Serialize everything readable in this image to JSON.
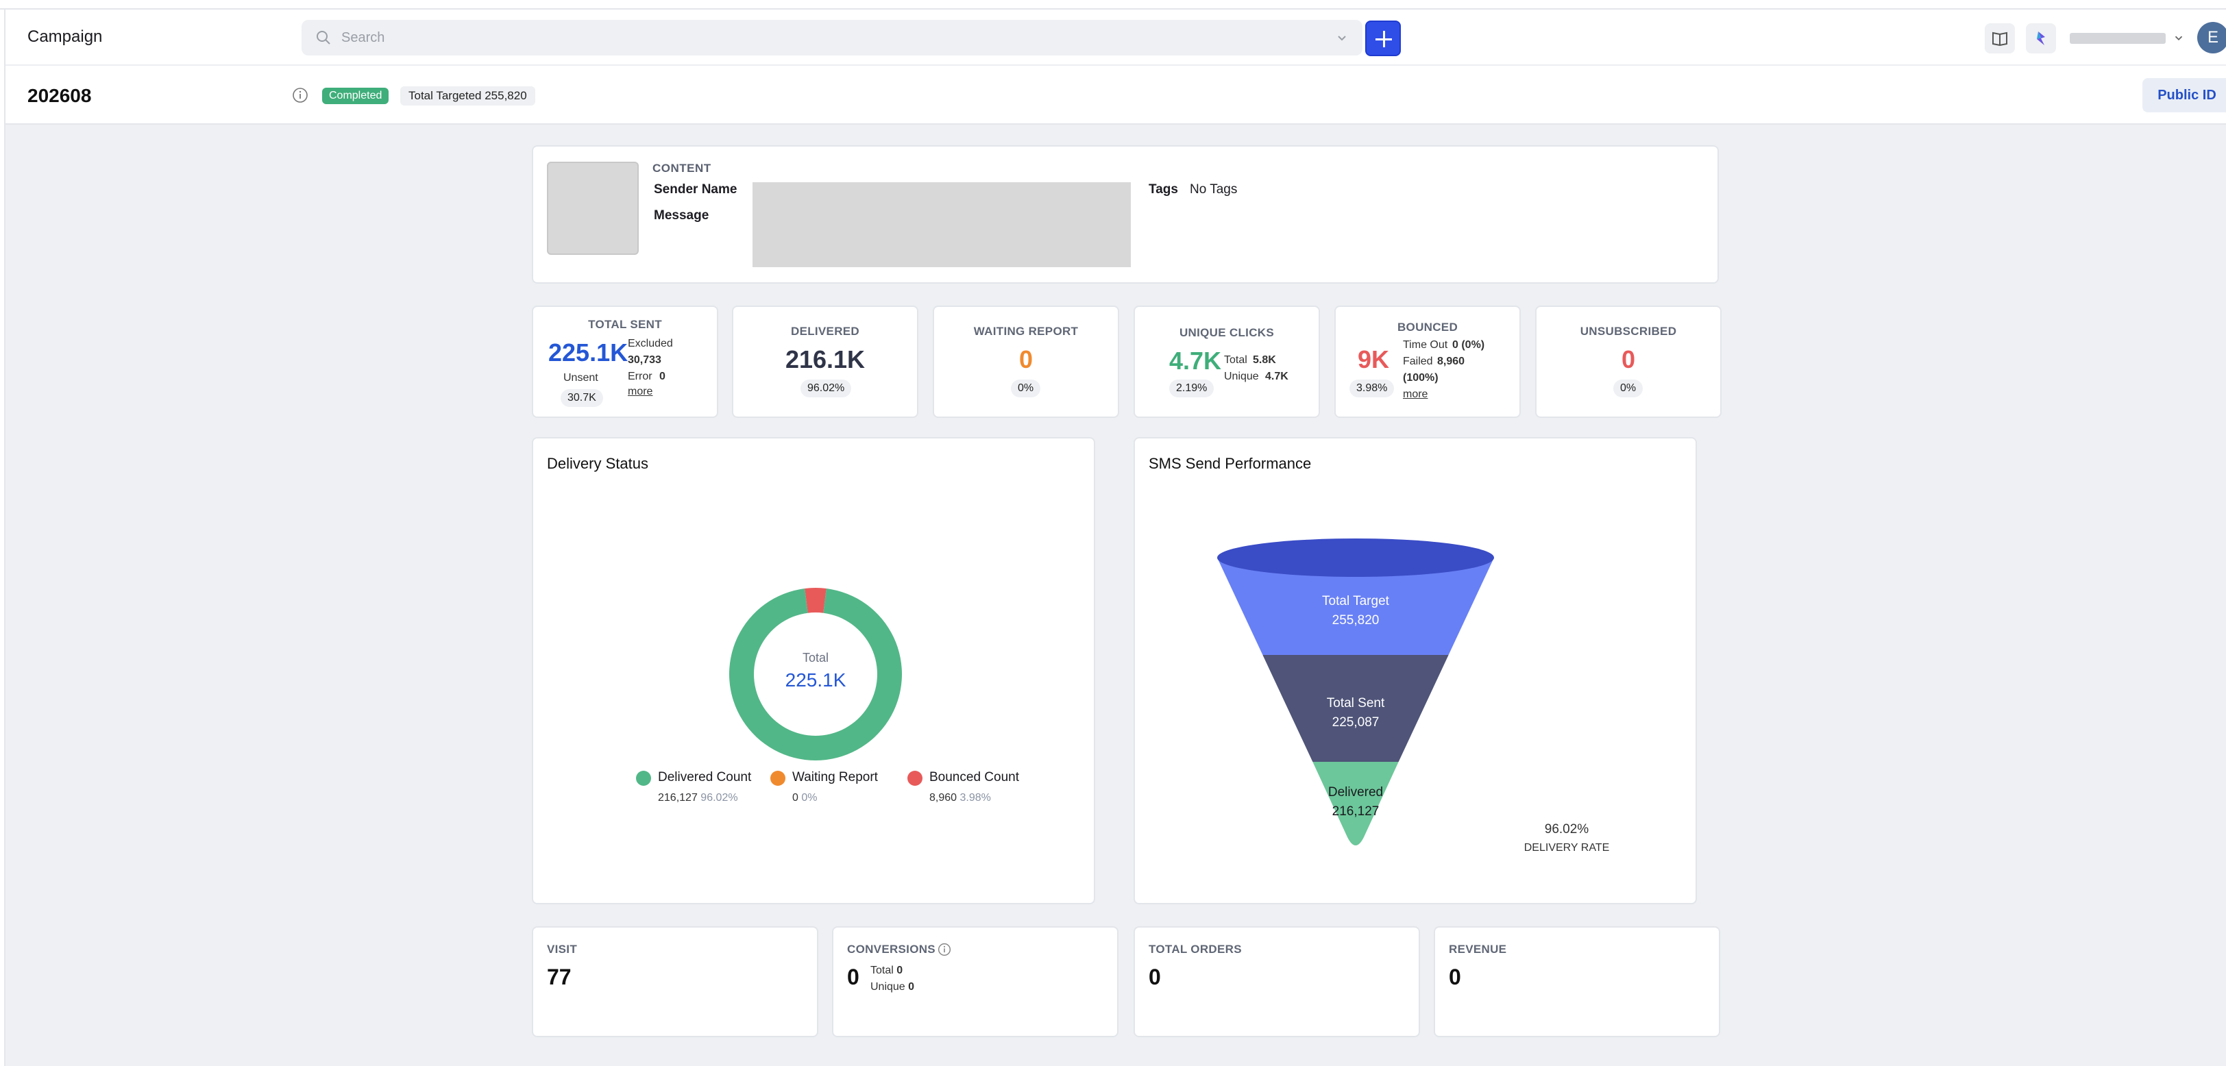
{
  "header": {
    "app_title": "Campaign",
    "search_placeholder": "Search",
    "avatar_initial": "E"
  },
  "campaign": {
    "id": "202608",
    "status": "Completed",
    "total_targeted": "Total Targeted 255,820",
    "public_id_label": "Public ID"
  },
  "content": {
    "heading": "CONTENT",
    "sender_name_label": "Sender Name",
    "message_label": "Message",
    "tags_label": "Tags",
    "tags_value": "No Tags"
  },
  "stats": {
    "total_sent": {
      "title": "TOTAL SENT",
      "value": "225.1K",
      "excluded_label": "Excluded",
      "excluded_value": "30,733",
      "unsent_label": "Unsent",
      "unsent_value": "30.7K",
      "error_label": "Error",
      "error_value": "0",
      "more": "more"
    },
    "delivered": {
      "title": "DELIVERED",
      "value": "216.1K",
      "pct": "96.02%"
    },
    "waiting": {
      "title": "WAITING REPORT",
      "value": "0",
      "pct": "0%"
    },
    "clicks": {
      "title": "UNIQUE CLICKS",
      "value": "4.7K",
      "pct": "2.19%",
      "total_label": "Total",
      "total_value": "5.8K",
      "unique_label": "Unique",
      "unique_value": "4.7K"
    },
    "bounced": {
      "title": "BOUNCED",
      "value": "9K",
      "pct": "3.98%",
      "timeout_label": "Time Out",
      "timeout_value": "0 (0%)",
      "failed_label": "Failed",
      "failed_value": "8,960",
      "failed_pct": "(100%)",
      "more": "more"
    },
    "unsubscribed": {
      "title": "UNSUBSCRIBED",
      "value": "0",
      "pct": "0%"
    }
  },
  "delivery_status": {
    "title": "Delivery Status",
    "center_label": "Total",
    "center_value": "225.1K",
    "legend": [
      {
        "name": "Delivered Count",
        "value": "216,127",
        "pct": "96.02%",
        "color": "#52b788"
      },
      {
        "name": "Waiting Report",
        "value": "0",
        "pct": "0%",
        "color": "#f08a2e"
      },
      {
        "name": "Bounced Count",
        "value": "8,960",
        "pct": "3.98%",
        "color": "#e85a5a"
      }
    ]
  },
  "sms_performance": {
    "title": "SMS Send Performance",
    "stages": [
      {
        "label": "Total Target",
        "value": "255,820",
        "color": "#6880f5"
      },
      {
        "label": "Total Sent",
        "value": "225,087",
        "color": "#4f5478"
      },
      {
        "label": "Delivered",
        "value": "216,127",
        "color": "#6cc79a"
      }
    ],
    "rate_value": "96.02%",
    "rate_label": "DELIVERY RATE"
  },
  "chart_data": [
    {
      "type": "pie",
      "title": "Delivery Status",
      "categories": [
        "Delivered Count",
        "Waiting Report",
        "Bounced Count"
      ],
      "values": [
        216127,
        0,
        8960
      ],
      "colors": [
        "#52b788",
        "#f08a2e",
        "#e85a5a"
      ],
      "total": "225.1K"
    },
    {
      "type": "bar",
      "title": "SMS Send Performance",
      "categories": [
        "Total Target",
        "Total Sent",
        "Delivered"
      ],
      "values": [
        255820,
        225087,
        216127
      ]
    }
  ],
  "bottom": {
    "visit": {
      "title": "VISIT",
      "value": "77"
    },
    "conversions": {
      "title": "CONVERSIONS",
      "value": "0",
      "total_label": "Total",
      "total_value": "0",
      "unique_label": "Unique",
      "unique_value": "0"
    },
    "orders": {
      "title": "TOTAL ORDERS",
      "value": "0"
    },
    "revenue": {
      "title": "REVENUE",
      "value": "0"
    }
  }
}
